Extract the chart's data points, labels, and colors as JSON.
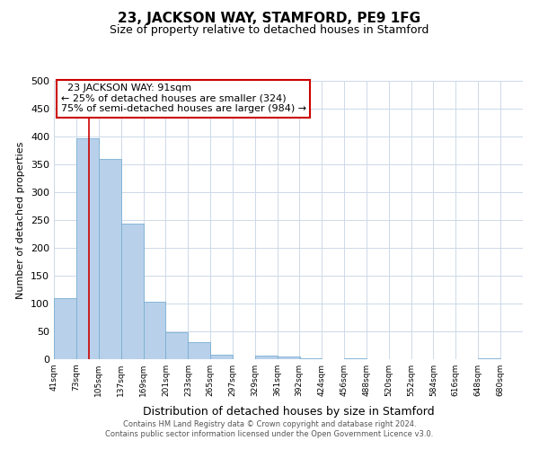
{
  "title": "23, JACKSON WAY, STAMFORD, PE9 1FG",
  "subtitle": "Size of property relative to detached houses in Stamford",
  "xlabel": "Distribution of detached houses by size in Stamford",
  "ylabel": "Number of detached properties",
  "bar_values": [
    110,
    396,
    360,
    244,
    103,
    49,
    30,
    8,
    0,
    7,
    5,
    2,
    0,
    2,
    0,
    0,
    0,
    0,
    0,
    2
  ],
  "bin_labels": [
    "41sqm",
    "73sqm",
    "105sqm",
    "137sqm",
    "169sqm",
    "201sqm",
    "233sqm",
    "265sqm",
    "297sqm",
    "329sqm",
    "361sqm",
    "392sqm",
    "424sqm",
    "456sqm",
    "488sqm",
    "520sqm",
    "552sqm",
    "584sqm",
    "616sqm",
    "648sqm",
    "680sqm"
  ],
  "bar_color": "#b8d0ea",
  "bar_edge_color": "#7aafd4",
  "grid_color": "#ccd9e8",
  "annotation_box_color": "#ffffff",
  "annotation_box_edge": "#cc0000",
  "annotation_title": "23 JACKSON WAY: 91sqm",
  "annotation_line1": "← 25% of detached houses are smaller (324)",
  "annotation_line2": "75% of semi-detached houses are larger (984) →",
  "red_line_x": 91,
  "ylim": [
    0,
    500
  ],
  "yticks": [
    0,
    50,
    100,
    150,
    200,
    250,
    300,
    350,
    400,
    450,
    500
  ],
  "footer_line1": "Contains HM Land Registry data © Crown copyright and database right 2024.",
  "footer_line2": "Contains public sector information licensed under the Open Government Licence v3.0.",
  "bin_starts": [
    41,
    73,
    105,
    137,
    169,
    201,
    233,
    265,
    297,
    329,
    361,
    392,
    424,
    456,
    488,
    520,
    552,
    584,
    616,
    648
  ],
  "bin_width": 32,
  "xlim_left": 41,
  "xlim_right": 712
}
